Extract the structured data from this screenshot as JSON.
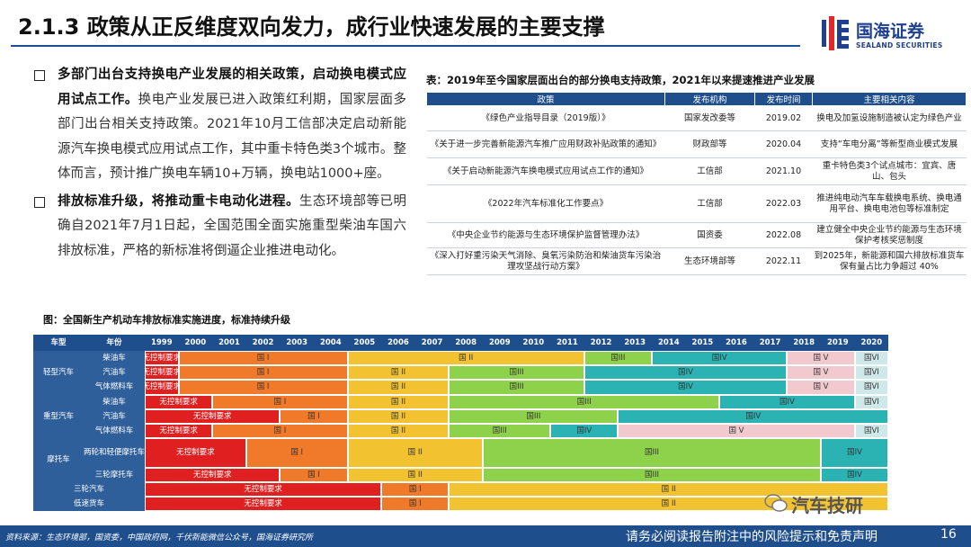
{
  "title": "2.1.3 政策从正反维度双向发力，成行业快速发展的主要支撑",
  "logo": {
    "cn": "国海证券",
    "en": "SEALAND SECURITIES"
  },
  "bullets": [
    {
      "bold": "多部门出台支持换电产业发展的相关政策，启动换电模式应用试点工作。",
      "text": "换电产业发展已进入政策红利期，国家层面多部门出台相关支持政策。2021年10月工信部决定启动新能源汽车换电模式应用试点工作，其中重卡特色类3个城市。整体而言，预计推广换电车辆10+万辆，换电站1000+座。"
    },
    {
      "bold": "排放标准升级，将推动重卡电动化进程。",
      "text": "生态环境部等已明确自2021年7月1日起，全国范围全面实施重型柴油车国六排放标准，严格的新标准将倒逼企业推进电动化。"
    }
  ],
  "table": {
    "caption": "表：2019年至今国家层面出台的部分换电支持政策，2021年以来提速推进产业发展",
    "headers": [
      "政策",
      "发布机构",
      "发布时间",
      "主要相关内容"
    ],
    "rows": [
      [
        "《绿色产业指导目录（2019版）》",
        "国家发改委等",
        "2019.02",
        "换电及加氢设施制造被认定为绿色产业"
      ],
      [
        "《关于进一步完善新能源汽车推广应用财政补贴政策的通知》",
        "财政部等",
        "2020.04",
        "支持“车电分离”等新型商业模式发展"
      ],
      [
        "《关于启动新能源汽车换电模式应用试点工作的通知》",
        "工信部",
        "2021.10",
        "重卡特色类3个试点城市：宜宾、唐山、包头"
      ],
      [
        "《2022年汽车标准化工作要点》",
        "工信部",
        "2022.03",
        "推进纯电动汽车车载换电系统、换电通用平台、换电电池包等标准制定"
      ],
      [
        "《中央企业节约能源与生态环境保护监督管理办法》",
        "国资委",
        "2022.08",
        "建立健全中央企业节约能源与生态环境保护考核奖惩制度"
      ],
      [
        "《深入打好重污染天气消除、臭氧污染防治和柴油货车污染治理攻坚战行动方案》",
        "生态环境部等",
        "2022.11",
        "到2025年，新能源和国六排放标准货车保有量占比力争超过 40%"
      ]
    ]
  },
  "chart": {
    "caption": "图：全国新生产机动车排放标准实施进度，标准持续升级",
    "header_labels": [
      "车型",
      "年份"
    ],
    "years": [
      "1999",
      "2000",
      "2001",
      "2002",
      "2003",
      "2004",
      "2005",
      "2006",
      "2007",
      "2008",
      "2009",
      "2010",
      "2011",
      "2012",
      "2013",
      "2014",
      "2015",
      "2016",
      "2017",
      "2018",
      "2019",
      "2020"
    ],
    "groups": [
      "轻型汽车",
      "重型汽车",
      "摩托车",
      "三轮汽车",
      "低速货车"
    ],
    "subtypes": [
      "柴油车",
      "汽油车",
      "气体燃料车",
      "柴油车",
      "汽油车",
      "气体燃料车",
      "两轮和轻便摩托车",
      "三轮摩托车"
    ],
    "colors": {
      "none": "#e02020",
      "I": "#f07a2a",
      "II": "#f2c230",
      "III": "#8ed14a",
      "IV": "#2bb3b3",
      "V": "#f2c9cf",
      "VI": "#cfe8ea"
    },
    "labels": {
      "none": "无控制要求",
      "I": "国 I",
      "II": "国 II",
      "III": "国III",
      "IV": "国IV",
      "V": "国 V",
      "VI": "国VI"
    }
  },
  "footer": {
    "source": "资料来源：生态环境部，国资委，中国政府网，千伏新能微信公众号，国海证券研究所",
    "disclaimer": "请务必阅读报告附注中的风险提示和免责声明",
    "page": "16"
  },
  "watermark": "汽车技研"
}
